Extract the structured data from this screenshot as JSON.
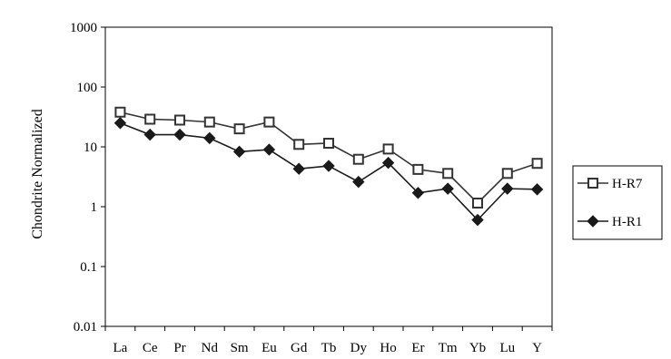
{
  "chart_data": {
    "type": "line",
    "title": "",
    "xlabel": "",
    "ylabel": "Chondrite Normalized",
    "y_scale": "log",
    "ylim": [
      0.01,
      1000
    ],
    "y_ticks": [
      "0.01",
      "0.1",
      "1",
      "10",
      "100",
      "1000"
    ],
    "grid": false,
    "legend_position": "right",
    "categories": [
      "La",
      "Ce",
      "Pr",
      "Nd",
      "Sm",
      "Eu",
      "Gd",
      "Tb",
      "Dy",
      "Ho",
      "Er",
      "Tm",
      "Yb",
      "Lu",
      "Y"
    ],
    "series": [
      {
        "name": "H-R7",
        "marker": "open-square",
        "color": "#333333",
        "values": [
          38,
          29,
          28,
          26,
          20,
          26,
          11,
          11.5,
          6.2,
          9.2,
          4.2,
          3.6,
          1.15,
          3.6,
          5.3
        ]
      },
      {
        "name": "H-R1",
        "marker": "filled-diamond",
        "color": "#1a1a1a",
        "values": [
          25,
          16,
          16,
          14,
          8.3,
          9,
          4.3,
          4.8,
          2.6,
          5.4,
          1.7,
          2,
          0.6,
          2,
          1.95
        ]
      }
    ]
  }
}
